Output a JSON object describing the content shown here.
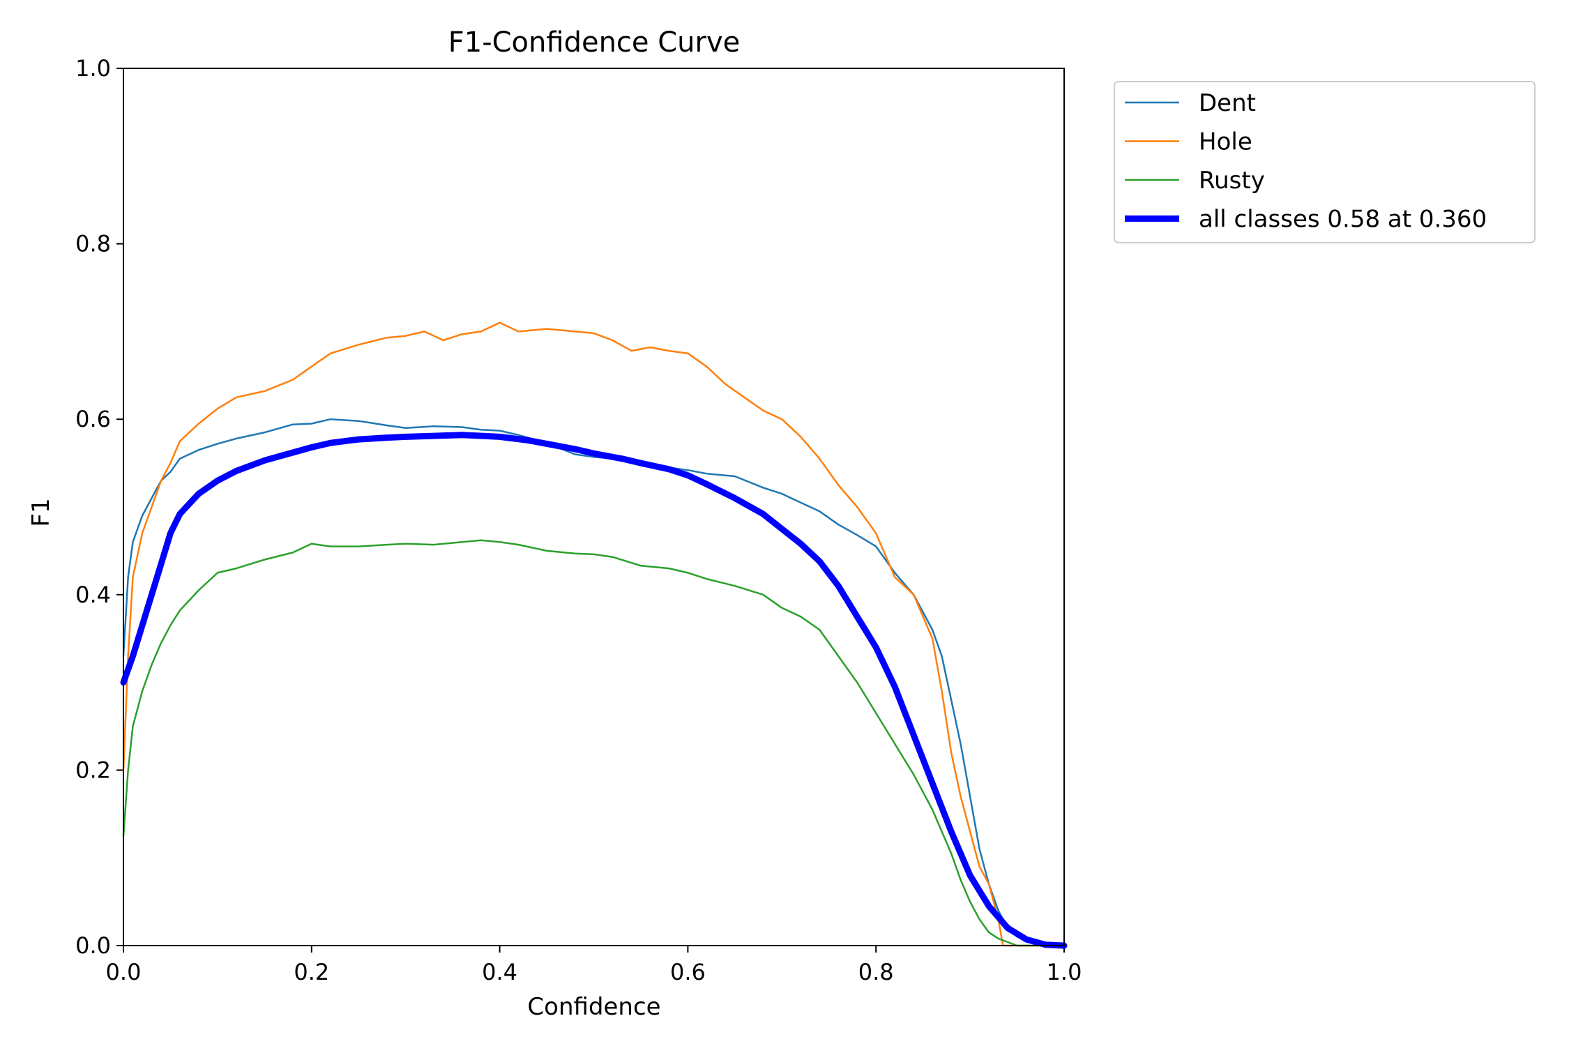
{
  "chart_data": {
    "type": "line",
    "title": "F1-Confidence Curve",
    "xlabel": "Confidence",
    "ylabel": "F1",
    "xlim": [
      0.0,
      1.0
    ],
    "ylim": [
      0.0,
      1.0
    ],
    "xticks": [
      "0.0",
      "0.2",
      "0.4",
      "0.6",
      "0.8",
      "1.0"
    ],
    "yticks": [
      "0.0",
      "0.2",
      "0.4",
      "0.6",
      "0.8",
      "1.0"
    ],
    "grid": false,
    "legend_position": "outside-top-right",
    "series": [
      {
        "name": "Dent",
        "color": "#1f77b4",
        "width": "thin",
        "points": [
          [
            0.0,
            0.33
          ],
          [
            0.005,
            0.42
          ],
          [
            0.01,
            0.46
          ],
          [
            0.02,
            0.49
          ],
          [
            0.03,
            0.51
          ],
          [
            0.04,
            0.53
          ],
          [
            0.05,
            0.54
          ],
          [
            0.06,
            0.555
          ],
          [
            0.08,
            0.565
          ],
          [
            0.1,
            0.572
          ],
          [
            0.12,
            0.578
          ],
          [
            0.15,
            0.585
          ],
          [
            0.18,
            0.594
          ],
          [
            0.2,
            0.595
          ],
          [
            0.22,
            0.6
          ],
          [
            0.25,
            0.598
          ],
          [
            0.28,
            0.593
          ],
          [
            0.3,
            0.59
          ],
          [
            0.33,
            0.592
          ],
          [
            0.36,
            0.591
          ],
          [
            0.38,
            0.588
          ],
          [
            0.4,
            0.587
          ],
          [
            0.42,
            0.582
          ],
          [
            0.45,
            0.573
          ],
          [
            0.48,
            0.56
          ],
          [
            0.5,
            0.557
          ],
          [
            0.52,
            0.555
          ],
          [
            0.55,
            0.55
          ],
          [
            0.58,
            0.545
          ],
          [
            0.6,
            0.542
          ],
          [
            0.62,
            0.538
          ],
          [
            0.65,
            0.535
          ],
          [
            0.68,
            0.522
          ],
          [
            0.7,
            0.515
          ],
          [
            0.72,
            0.505
          ],
          [
            0.74,
            0.495
          ],
          [
            0.76,
            0.48
          ],
          [
            0.78,
            0.468
          ],
          [
            0.8,
            0.455
          ],
          [
            0.82,
            0.425
          ],
          [
            0.84,
            0.4
          ],
          [
            0.86,
            0.36
          ],
          [
            0.87,
            0.33
          ],
          [
            0.88,
            0.28
          ],
          [
            0.89,
            0.23
          ],
          [
            0.9,
            0.17
          ],
          [
            0.91,
            0.11
          ],
          [
            0.92,
            0.07
          ],
          [
            0.93,
            0.04
          ],
          [
            0.94,
            0.02
          ],
          [
            0.95,
            0.01
          ],
          [
            0.97,
            0.003
          ],
          [
            0.99,
            0.0
          ],
          [
            1.0,
            0.0
          ]
        ]
      },
      {
        "name": "Hole",
        "color": "#ff7f0e",
        "width": "thin",
        "points": [
          [
            0.0,
            0.2
          ],
          [
            0.005,
            0.33
          ],
          [
            0.01,
            0.42
          ],
          [
            0.02,
            0.47
          ],
          [
            0.03,
            0.5
          ],
          [
            0.04,
            0.53
          ],
          [
            0.05,
            0.55
          ],
          [
            0.06,
            0.575
          ],
          [
            0.08,
            0.595
          ],
          [
            0.1,
            0.612
          ],
          [
            0.12,
            0.625
          ],
          [
            0.15,
            0.632
          ],
          [
            0.18,
            0.645
          ],
          [
            0.2,
            0.66
          ],
          [
            0.22,
            0.675
          ],
          [
            0.25,
            0.685
          ],
          [
            0.28,
            0.693
          ],
          [
            0.3,
            0.695
          ],
          [
            0.32,
            0.7
          ],
          [
            0.34,
            0.69
          ],
          [
            0.36,
            0.697
          ],
          [
            0.38,
            0.7
          ],
          [
            0.4,
            0.71
          ],
          [
            0.42,
            0.7
          ],
          [
            0.45,
            0.703
          ],
          [
            0.48,
            0.7
          ],
          [
            0.5,
            0.698
          ],
          [
            0.52,
            0.69
          ],
          [
            0.54,
            0.678
          ],
          [
            0.56,
            0.682
          ],
          [
            0.58,
            0.678
          ],
          [
            0.6,
            0.675
          ],
          [
            0.62,
            0.66
          ],
          [
            0.64,
            0.64
          ],
          [
            0.66,
            0.625
          ],
          [
            0.68,
            0.61
          ],
          [
            0.7,
            0.6
          ],
          [
            0.72,
            0.58
          ],
          [
            0.74,
            0.555
          ],
          [
            0.76,
            0.525
          ],
          [
            0.78,
            0.5
          ],
          [
            0.8,
            0.47
          ],
          [
            0.82,
            0.42
          ],
          [
            0.84,
            0.4
          ],
          [
            0.86,
            0.35
          ],
          [
            0.87,
            0.29
          ],
          [
            0.88,
            0.22
          ],
          [
            0.89,
            0.17
          ],
          [
            0.9,
            0.13
          ],
          [
            0.91,
            0.09
          ],
          [
            0.92,
            0.07
          ],
          [
            0.93,
            0.03
          ],
          [
            0.935,
            0.0
          ],
          [
            1.0,
            0.0
          ]
        ]
      },
      {
        "name": "Rusty",
        "color": "#2ca02c",
        "width": "thin",
        "points": [
          [
            0.0,
            0.125
          ],
          [
            0.005,
            0.2
          ],
          [
            0.01,
            0.25
          ],
          [
            0.02,
            0.29
          ],
          [
            0.03,
            0.32
          ],
          [
            0.04,
            0.345
          ],
          [
            0.05,
            0.365
          ],
          [
            0.06,
            0.382
          ],
          [
            0.08,
            0.405
          ],
          [
            0.1,
            0.425
          ],
          [
            0.12,
            0.43
          ],
          [
            0.15,
            0.44
          ],
          [
            0.18,
            0.448
          ],
          [
            0.2,
            0.458
          ],
          [
            0.22,
            0.455
          ],
          [
            0.25,
            0.455
          ],
          [
            0.28,
            0.457
          ],
          [
            0.3,
            0.458
          ],
          [
            0.33,
            0.457
          ],
          [
            0.36,
            0.46
          ],
          [
            0.38,
            0.462
          ],
          [
            0.4,
            0.46
          ],
          [
            0.42,
            0.457
          ],
          [
            0.45,
            0.45
          ],
          [
            0.48,
            0.447
          ],
          [
            0.5,
            0.446
          ],
          [
            0.52,
            0.443
          ],
          [
            0.55,
            0.433
          ],
          [
            0.58,
            0.43
          ],
          [
            0.6,
            0.425
          ],
          [
            0.62,
            0.418
          ],
          [
            0.65,
            0.41
          ],
          [
            0.68,
            0.4
          ],
          [
            0.7,
            0.385
          ],
          [
            0.72,
            0.375
          ],
          [
            0.74,
            0.36
          ],
          [
            0.76,
            0.33
          ],
          [
            0.78,
            0.3
          ],
          [
            0.8,
            0.265
          ],
          [
            0.82,
            0.23
          ],
          [
            0.84,
            0.195
          ],
          [
            0.86,
            0.155
          ],
          [
            0.87,
            0.13
          ],
          [
            0.88,
            0.105
          ],
          [
            0.89,
            0.075
          ],
          [
            0.9,
            0.05
          ],
          [
            0.91,
            0.03
          ],
          [
            0.92,
            0.015
          ],
          [
            0.93,
            0.008
          ],
          [
            0.95,
            0.0
          ],
          [
            1.0,
            0.0
          ]
        ]
      },
      {
        "name": "all classes 0.58 at 0.360",
        "color": "#0000ff",
        "width": "thick",
        "points": [
          [
            0.0,
            0.3
          ],
          [
            0.01,
            0.33
          ],
          [
            0.02,
            0.365
          ],
          [
            0.03,
            0.4
          ],
          [
            0.04,
            0.435
          ],
          [
            0.05,
            0.47
          ],
          [
            0.06,
            0.492
          ],
          [
            0.08,
            0.515
          ],
          [
            0.1,
            0.53
          ],
          [
            0.12,
            0.541
          ],
          [
            0.15,
            0.553
          ],
          [
            0.18,
            0.562
          ],
          [
            0.2,
            0.568
          ],
          [
            0.22,
            0.573
          ],
          [
            0.25,
            0.577
          ],
          [
            0.28,
            0.579
          ],
          [
            0.3,
            0.58
          ],
          [
            0.33,
            0.581
          ],
          [
            0.36,
            0.582
          ],
          [
            0.4,
            0.58
          ],
          [
            0.43,
            0.576
          ],
          [
            0.45,
            0.572
          ],
          [
            0.48,
            0.566
          ],
          [
            0.5,
            0.561
          ],
          [
            0.53,
            0.555
          ],
          [
            0.55,
            0.55
          ],
          [
            0.58,
            0.543
          ],
          [
            0.6,
            0.536
          ],
          [
            0.62,
            0.526
          ],
          [
            0.65,
            0.51
          ],
          [
            0.68,
            0.492
          ],
          [
            0.7,
            0.475
          ],
          [
            0.72,
            0.458
          ],
          [
            0.74,
            0.438
          ],
          [
            0.76,
            0.41
          ],
          [
            0.78,
            0.375
          ],
          [
            0.8,
            0.34
          ],
          [
            0.82,
            0.295
          ],
          [
            0.84,
            0.24
          ],
          [
            0.86,
            0.185
          ],
          [
            0.88,
            0.13
          ],
          [
            0.9,
            0.08
          ],
          [
            0.92,
            0.045
          ],
          [
            0.94,
            0.02
          ],
          [
            0.96,
            0.007
          ],
          [
            0.98,
            0.001
          ],
          [
            1.0,
            0.0
          ]
        ]
      }
    ]
  }
}
